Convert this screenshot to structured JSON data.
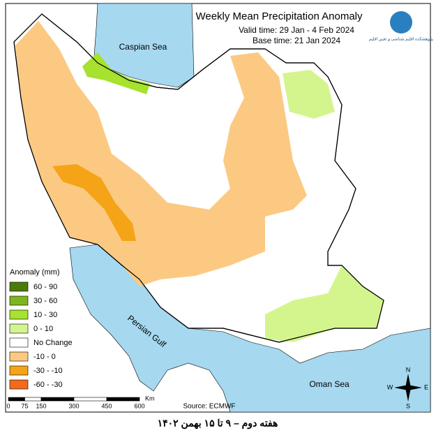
{
  "header": {
    "title": "Weekly Mean Precipitation Anomaly",
    "valid_time": "Valid time:  29 Jan - 4 Feb 2024",
    "base_time": "Base time: 21 Jan 2024",
    "logo_text": "پژوهشکده اقلیم شناسی و تغییر اقلیم"
  },
  "labels": {
    "caspian": "Caspian Sea",
    "gulf": "Persian Gulf",
    "oman": "Oman Sea"
  },
  "legend": {
    "title": "Anomaly (mm)",
    "items": [
      {
        "label": "60 - 90",
        "color": "#4c7a0a"
      },
      {
        "label": "30 - 60",
        "color": "#7fb51e"
      },
      {
        "label": "10 - 30",
        "color": "#a6e22e"
      },
      {
        "label": "0 - 10",
        "color": "#d4f58e"
      },
      {
        "label": "No Change",
        "color": "#ffffff"
      },
      {
        "label": "-10 - 0",
        "color": "#fcc983"
      },
      {
        "label": "-30 - -10",
        "color": "#f5a418"
      },
      {
        "label": "-60 - -30",
        "color": "#f26a1b"
      }
    ]
  },
  "scale_bar": {
    "labels": [
      "0",
      "75",
      "150",
      "300",
      "450",
      "600"
    ],
    "unit": "Km"
  },
  "source": "Source: ECMWF",
  "compass": {
    "n": "N",
    "e": "E",
    "s": "S",
    "w": "W"
  },
  "caption": "هفته دوم – ۹ تا ۱۵ بهمن ۱۴۰۲"
}
